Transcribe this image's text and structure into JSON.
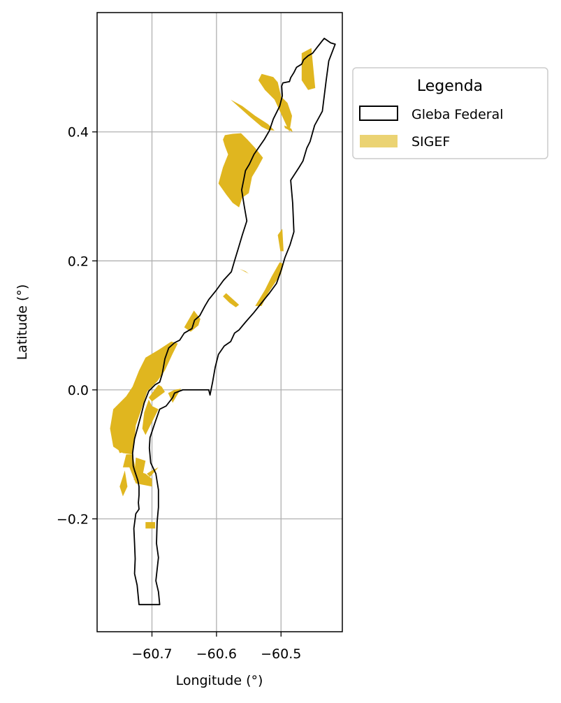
{
  "chart_data": {
    "type": "map",
    "xlabel": "Longitude (°)",
    "ylabel": "Latitude (°)",
    "xlim": [
      -60.785,
      -60.405
    ],
    "ylim": [
      -0.375,
      0.585
    ],
    "xticks": [
      -60.7,
      -60.6,
      -60.5
    ],
    "xtick_labels": [
      "−60.7",
      "−60.6",
      "−60.5"
    ],
    "yticks": [
      -0.2,
      0.0,
      0.2,
      0.4
    ],
    "ytick_labels": [
      "−0.2",
      "0.0",
      "0.2",
      "0.4"
    ],
    "grid": true,
    "legend": {
      "title": "Legenda",
      "placement": "outside-upper-right",
      "entries": [
        "Gleba Federal",
        "SIGEF"
      ]
    },
    "colors": {
      "outline": "#000000",
      "sigef": "#e0b61f",
      "sigef_legend": "#ebd373",
      "grid": "#b0b0b0"
    },
    "gleba_federal": [
      [
        -60.423,
        0.538
      ],
      [
        -60.433,
        0.545
      ],
      [
        -60.437,
        0.54
      ],
      [
        -60.445,
        0.53
      ],
      [
        -60.451,
        0.522
      ],
      [
        -60.458,
        0.518
      ],
      [
        -60.465,
        0.512
      ],
      [
        -60.468,
        0.505
      ],
      [
        -60.476,
        0.5
      ],
      [
        -60.48,
        0.492
      ],
      [
        -60.485,
        0.484
      ],
      [
        -60.487,
        0.478
      ],
      [
        -60.497,
        0.476
      ],
      [
        -60.499,
        0.471
      ],
      [
        -60.498,
        0.456
      ],
      [
        -60.502,
        0.44
      ],
      [
        -60.512,
        0.42
      ],
      [
        -60.518,
        0.402
      ],
      [
        -60.526,
        0.388
      ],
      [
        -60.535,
        0.375
      ],
      [
        -60.542,
        0.365
      ],
      [
        -60.549,
        0.35
      ],
      [
        -60.555,
        0.34
      ],
      [
        -60.558,
        0.325
      ],
      [
        -60.561,
        0.31
      ],
      [
        -60.557,
        0.285
      ],
      [
        -60.553,
        0.262
      ],
      [
        -60.56,
        0.24
      ],
      [
        -60.566,
        0.22
      ],
      [
        -60.572,
        0.2
      ],
      [
        -60.577,
        0.183
      ],
      [
        -60.589,
        0.17
      ],
      [
        -60.6,
        0.155
      ],
      [
        -60.612,
        0.14
      ],
      [
        -60.618,
        0.13
      ],
      [
        -60.626,
        0.115
      ],
      [
        -60.634,
        0.108
      ],
      [
        -60.638,
        0.095
      ],
      [
        -60.65,
        0.088
      ],
      [
        -60.657,
        0.077
      ],
      [
        -60.665,
        0.073
      ],
      [
        -60.674,
        0.065
      ],
      [
        -60.68,
        0.048
      ],
      [
        -60.684,
        0.025
      ],
      [
        -60.688,
        0.012
      ],
      [
        -60.695,
        0.008
      ],
      [
        -60.705,
        -0.002
      ],
      [
        -60.712,
        -0.02
      ],
      [
        -60.716,
        -0.036
      ],
      [
        -60.722,
        -0.058
      ],
      [
        -60.727,
        -0.076
      ],
      [
        -60.73,
        -0.098
      ],
      [
        -60.729,
        -0.118
      ],
      [
        -60.727,
        -0.125
      ],
      [
        -60.722,
        -0.14
      ],
      [
        -60.72,
        -0.15
      ],
      [
        -60.72,
        -0.163
      ],
      [
        -60.721,
        -0.175
      ],
      [
        -60.72,
        -0.185
      ],
      [
        -60.725,
        -0.192
      ],
      [
        -60.728,
        -0.215
      ],
      [
        -60.727,
        -0.238
      ],
      [
        -60.726,
        -0.262
      ],
      [
        -60.727,
        -0.285
      ],
      [
        -60.723,
        -0.303
      ],
      [
        -60.72,
        -0.333
      ],
      [
        -60.688,
        -0.333
      ],
      [
        -60.69,
        -0.313
      ],
      [
        -60.694,
        -0.296
      ],
      [
        -60.69,
        -0.26
      ],
      [
        -60.693,
        -0.238
      ],
      [
        -60.692,
        -0.205
      ],
      [
        -60.69,
        -0.182
      ],
      [
        -60.69,
        -0.155
      ],
      [
        -60.694,
        -0.13
      ],
      [
        -60.702,
        -0.113
      ],
      [
        -60.704,
        -0.09
      ],
      [
        -60.703,
        -0.074
      ],
      [
        -60.695,
        -0.05
      ],
      [
        -60.688,
        -0.03
      ],
      [
        -60.678,
        -0.025
      ],
      [
        -60.668,
        -0.012
      ],
      [
        -60.665,
        -0.005
      ],
      [
        -60.652,
        0.0
      ],
      [
        -60.612,
        0.0
      ],
      [
        -60.61,
        -0.008
      ],
      [
        -60.606,
        0.012
      ],
      [
        -60.602,
        0.035
      ],
      [
        -60.597,
        0.055
      ],
      [
        -60.588,
        0.068
      ],
      [
        -60.578,
        0.075
      ],
      [
        -60.572,
        0.088
      ],
      [
        -60.565,
        0.093
      ],
      [
        -60.555,
        0.105
      ],
      [
        -60.542,
        0.12
      ],
      [
        -60.53,
        0.135
      ],
      [
        -60.518,
        0.15
      ],
      [
        -60.507,
        0.165
      ],
      [
        -60.5,
        0.185
      ],
      [
        -60.494,
        0.205
      ],
      [
        -60.486,
        0.225
      ],
      [
        -60.48,
        0.245
      ],
      [
        -60.482,
        0.29
      ],
      [
        -60.485,
        0.325
      ],
      [
        -60.472,
        0.345
      ],
      [
        -60.466,
        0.355
      ],
      [
        -60.46,
        0.375
      ],
      [
        -60.455,
        0.385
      ],
      [
        -60.448,
        0.41
      ],
      [
        -60.436,
        0.432
      ],
      [
        -60.43,
        0.48
      ],
      [
        -60.426,
        0.51
      ],
      [
        -60.416,
        0.536
      ],
      [
        -60.423,
        0.538
      ]
    ],
    "sigef_parcels": [
      [
        [
          -60.468,
          0.522
        ],
        [
          -60.453,
          0.53
        ],
        [
          -60.447,
          0.468
        ],
        [
          -60.458,
          0.465
        ],
        [
          -60.468,
          0.48
        ]
      ],
      [
        [
          -60.505,
          0.477
        ],
        [
          -60.5,
          0.455
        ],
        [
          -60.49,
          0.445
        ],
        [
          -60.483,
          0.425
        ],
        [
          -60.487,
          0.4
        ],
        [
          -60.51,
          0.45
        ],
        [
          -60.525,
          0.465
        ],
        [
          -60.535,
          0.48
        ],
        [
          -60.53,
          0.49
        ],
        [
          -60.512,
          0.485
        ]
      ],
      [
        [
          -60.578,
          0.45
        ],
        [
          -60.55,
          0.425
        ],
        [
          -60.53,
          0.408
        ],
        [
          -60.52,
          0.403
        ],
        [
          -60.51,
          0.402
        ],
        [
          -60.52,
          0.412
        ],
        [
          -60.54,
          0.425
        ],
        [
          -60.56,
          0.44
        ]
      ],
      [
        [
          -60.495,
          0.41
        ],
        [
          -60.484,
          0.405
        ],
        [
          -60.482,
          0.4
        ],
        [
          -60.494,
          0.406
        ]
      ],
      [
        [
          -60.587,
          0.395
        ],
        [
          -60.575,
          0.397
        ],
        [
          -60.562,
          0.398
        ],
        [
          -60.552,
          0.388
        ],
        [
          -60.54,
          0.375
        ],
        [
          -60.528,
          0.36
        ],
        [
          -60.536,
          0.345
        ],
        [
          -60.545,
          0.33
        ],
        [
          -60.55,
          0.305
        ],
        [
          -60.56,
          0.298
        ],
        [
          -60.565,
          0.283
        ],
        [
          -60.575,
          0.29
        ],
        [
          -60.585,
          0.303
        ],
        [
          -60.597,
          0.32
        ],
        [
          -60.59,
          0.345
        ],
        [
          -60.582,
          0.365
        ],
        [
          -60.587,
          0.378
        ],
        [
          -60.59,
          0.388
        ]
      ],
      [
        [
          -60.505,
          0.24
        ],
        [
          -60.498,
          0.25
        ],
        [
          -60.496,
          0.215
        ],
        [
          -60.501,
          0.215
        ]
      ],
      [
        [
          -60.502,
          0.198
        ],
        [
          -60.496,
          0.195
        ],
        [
          -60.5,
          0.18
        ],
        [
          -60.52,
          0.15
        ],
        [
          -60.53,
          0.13
        ],
        [
          -60.54,
          0.13
        ],
        [
          -60.525,
          0.155
        ],
        [
          -60.515,
          0.175
        ]
      ],
      [
        [
          -60.57,
          0.19
        ],
        [
          -60.565,
          0.188
        ],
        [
          -60.55,
          0.18
        ],
        [
          -60.555,
          0.184
        ]
      ],
      [
        [
          -60.59,
          0.145
        ],
        [
          -60.58,
          0.135
        ],
        [
          -60.57,
          0.128
        ],
        [
          -60.565,
          0.132
        ],
        [
          -60.585,
          0.15
        ]
      ],
      [
        [
          -60.635,
          0.123
        ],
        [
          -60.625,
          0.11
        ],
        [
          -60.628,
          0.1
        ],
        [
          -60.64,
          0.09
        ],
        [
          -60.65,
          0.097
        ]
      ],
      [
        [
          -60.69,
          0.062
        ],
        [
          -60.67,
          0.075
        ],
        [
          -60.66,
          0.072
        ],
        [
          -60.668,
          0.056
        ],
        [
          -60.68,
          0.03
        ],
        [
          -60.692,
          0.013
        ],
        [
          -60.707,
          -0.002
        ],
        [
          -60.713,
          -0.02
        ],
        [
          -60.718,
          -0.035
        ],
        [
          -60.725,
          -0.055
        ],
        [
          -60.727,
          -0.08
        ],
        [
          -60.73,
          -0.1
        ],
        [
          -60.745,
          -0.098
        ],
        [
          -60.76,
          -0.088
        ],
        [
          -60.765,
          -0.06
        ],
        [
          -60.76,
          -0.03
        ],
        [
          -60.74,
          -0.01
        ],
        [
          -60.73,
          0.005
        ],
        [
          -60.72,
          0.03
        ],
        [
          -60.71,
          0.05
        ]
      ],
      [
        [
          -60.705,
          -0.012
        ],
        [
          -60.7,
          -0.018
        ],
        [
          -60.68,
          -0.003
        ],
        [
          -60.685,
          0.005
        ],
        [
          -60.69,
          0.008
        ]
      ],
      [
        [
          -60.668,
          -0.02
        ],
        [
          -60.655,
          0.002
        ],
        [
          -60.665,
          0.0
        ],
        [
          -60.675,
          -0.005
        ]
      ],
      [
        [
          -60.715,
          -0.06
        ],
        [
          -60.71,
          -0.07
        ],
        [
          -60.7,
          -0.05
        ],
        [
          -60.69,
          -0.03
        ],
        [
          -60.7,
          -0.025
        ],
        [
          -60.705,
          -0.015
        ],
        [
          -60.712,
          -0.035
        ]
      ],
      [
        [
          -60.725,
          -0.105
        ],
        [
          -60.71,
          -0.11
        ],
        [
          -60.715,
          -0.135
        ],
        [
          -60.728,
          -0.14
        ]
      ],
      [
        [
          -60.745,
          -0.12
        ],
        [
          -60.735,
          -0.12
        ],
        [
          -60.725,
          -0.145
        ],
        [
          -60.7,
          -0.15
        ],
        [
          -60.7,
          -0.138
        ],
        [
          -60.71,
          -0.13
        ],
        [
          -60.725,
          -0.125
        ],
        [
          -60.73,
          -0.1
        ],
        [
          -60.74,
          -0.1
        ]
      ],
      [
        [
          -60.745,
          -0.165
        ],
        [
          -60.738,
          -0.15
        ],
        [
          -60.742,
          -0.125
        ],
        [
          -60.75,
          -0.15
        ]
      ],
      [
        [
          -60.7,
          -0.125
        ],
        [
          -60.69,
          -0.12
        ],
        [
          -60.703,
          -0.135
        ],
        [
          -60.708,
          -0.13
        ]
      ],
      [
        [
          -60.71,
          -0.205
        ],
        [
          -60.695,
          -0.205
        ],
        [
          -60.695,
          -0.215
        ],
        [
          -60.71,
          -0.215
        ]
      ],
      [
        [
          -60.755,
          -0.085
        ],
        [
          -60.745,
          -0.08
        ],
        [
          -60.738,
          -0.095
        ],
        [
          -60.75,
          -0.098
        ]
      ]
    ]
  }
}
